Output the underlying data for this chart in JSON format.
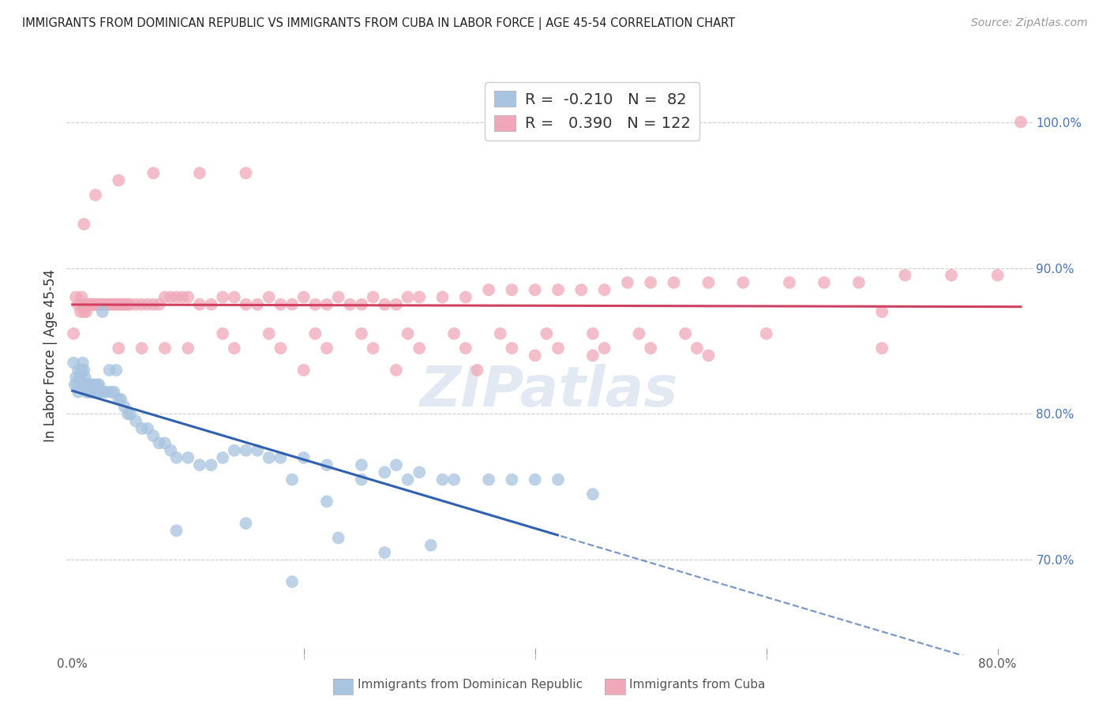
{
  "title": "IMMIGRANTS FROM DOMINICAN REPUBLIC VS IMMIGRANTS FROM CUBA IN LABOR FORCE | AGE 45-54 CORRELATION CHART",
  "source": "Source: ZipAtlas.com",
  "ylabel": "In Labor Force | Age 45-54",
  "legend_labels": [
    "Immigrants from Dominican Republic",
    "Immigrants from Cuba"
  ],
  "legend_r": [
    -0.21,
    0.39
  ],
  "legend_n": [
    82,
    122
  ],
  "blue_color": "#a8c4e0",
  "pink_color": "#f0a8b8",
  "blue_line_color": "#3060b0",
  "pink_line_color": "#d04060",
  "watermark": "ZIPatlas",
  "x_tick_labels": [
    "0.0%",
    "",
    "",
    "",
    "",
    "80.0%"
  ],
  "x_tick_values": [
    0.0,
    0.16,
    0.32,
    0.48,
    0.64,
    0.8
  ],
  "right_y_ticks": [
    0.7,
    0.8,
    0.9,
    1.0
  ],
  "right_y_tick_labels": [
    "70.0%",
    "80.0%",
    "90.0%",
    "100.0%"
  ],
  "xlim": [
    -0.005,
    0.83
  ],
  "ylim": [
    0.635,
    1.045
  ],
  "blue_x": [
    0.001,
    0.002,
    0.003,
    0.004,
    0.005,
    0.005,
    0.006,
    0.007,
    0.007,
    0.008,
    0.009,
    0.01,
    0.01,
    0.011,
    0.012,
    0.012,
    0.013,
    0.014,
    0.015,
    0.015,
    0.016,
    0.017,
    0.018,
    0.019,
    0.02,
    0.021,
    0.022,
    0.023,
    0.024,
    0.025,
    0.026,
    0.028,
    0.03,
    0.032,
    0.034,
    0.036,
    0.038,
    0.04,
    0.042,
    0.045,
    0.048,
    0.05,
    0.055,
    0.06,
    0.065,
    0.07,
    0.075,
    0.08,
    0.085,
    0.09,
    0.1,
    0.11,
    0.12,
    0.13,
    0.14,
    0.15,
    0.16,
    0.17,
    0.18,
    0.2,
    0.22,
    0.25,
    0.28,
    0.3,
    0.33,
    0.36,
    0.4,
    0.45,
    0.32,
    0.27,
    0.38,
    0.42,
    0.22,
    0.19,
    0.25,
    0.29,
    0.09,
    0.15,
    0.19,
    0.23,
    0.27,
    0.31
  ],
  "blue_y": [
    0.835,
    0.82,
    0.825,
    0.82,
    0.815,
    0.83,
    0.825,
    0.82,
    0.825,
    0.83,
    0.835,
    0.83,
    0.82,
    0.825,
    0.82,
    0.815,
    0.82,
    0.815,
    0.82,
    0.815,
    0.815,
    0.82,
    0.815,
    0.82,
    0.815,
    0.815,
    0.82,
    0.82,
    0.815,
    0.815,
    0.87,
    0.815,
    0.815,
    0.83,
    0.815,
    0.815,
    0.83,
    0.81,
    0.81,
    0.805,
    0.8,
    0.8,
    0.795,
    0.79,
    0.79,
    0.785,
    0.78,
    0.78,
    0.775,
    0.77,
    0.77,
    0.765,
    0.765,
    0.77,
    0.775,
    0.775,
    0.775,
    0.77,
    0.77,
    0.77,
    0.765,
    0.765,
    0.765,
    0.76,
    0.755,
    0.755,
    0.755,
    0.745,
    0.755,
    0.76,
    0.755,
    0.755,
    0.74,
    0.755,
    0.755,
    0.755,
    0.72,
    0.725,
    0.685,
    0.715,
    0.705,
    0.71
  ],
  "pink_x": [
    0.001,
    0.003,
    0.005,
    0.007,
    0.008,
    0.009,
    0.01,
    0.011,
    0.012,
    0.013,
    0.015,
    0.016,
    0.017,
    0.018,
    0.019,
    0.02,
    0.022,
    0.024,
    0.026,
    0.028,
    0.03,
    0.032,
    0.034,
    0.036,
    0.038,
    0.04,
    0.042,
    0.044,
    0.046,
    0.048,
    0.05,
    0.055,
    0.06,
    0.065,
    0.07,
    0.075,
    0.08,
    0.085,
    0.09,
    0.095,
    0.1,
    0.11,
    0.12,
    0.13,
    0.14,
    0.15,
    0.16,
    0.17,
    0.18,
    0.19,
    0.2,
    0.21,
    0.22,
    0.23,
    0.24,
    0.25,
    0.26,
    0.27,
    0.28,
    0.29,
    0.3,
    0.32,
    0.34,
    0.36,
    0.38,
    0.4,
    0.42,
    0.44,
    0.46,
    0.48,
    0.5,
    0.52,
    0.55,
    0.58,
    0.62,
    0.65,
    0.68,
    0.72,
    0.76,
    0.8,
    0.13,
    0.17,
    0.21,
    0.25,
    0.29,
    0.33,
    0.37,
    0.41,
    0.45,
    0.49,
    0.53,
    0.04,
    0.06,
    0.08,
    0.1,
    0.14,
    0.18,
    0.22,
    0.26,
    0.3,
    0.34,
    0.38,
    0.42,
    0.46,
    0.5,
    0.54,
    0.2,
    0.28,
    0.35,
    0.4,
    0.45,
    0.55,
    0.6,
    0.7,
    0.01,
    0.02,
    0.04,
    0.07,
    0.11,
    0.15,
    0.7,
    0.82
  ],
  "pink_y": [
    0.855,
    0.88,
    0.875,
    0.87,
    0.88,
    0.875,
    0.87,
    0.875,
    0.87,
    0.875,
    0.875,
    0.875,
    0.875,
    0.875,
    0.875,
    0.875,
    0.875,
    0.875,
    0.875,
    0.875,
    0.875,
    0.875,
    0.875,
    0.875,
    0.875,
    0.875,
    0.875,
    0.875,
    0.875,
    0.875,
    0.875,
    0.875,
    0.875,
    0.875,
    0.875,
    0.875,
    0.88,
    0.88,
    0.88,
    0.88,
    0.88,
    0.875,
    0.875,
    0.88,
    0.88,
    0.875,
    0.875,
    0.88,
    0.875,
    0.875,
    0.88,
    0.875,
    0.875,
    0.88,
    0.875,
    0.875,
    0.88,
    0.875,
    0.875,
    0.88,
    0.88,
    0.88,
    0.88,
    0.885,
    0.885,
    0.885,
    0.885,
    0.885,
    0.885,
    0.89,
    0.89,
    0.89,
    0.89,
    0.89,
    0.89,
    0.89,
    0.89,
    0.895,
    0.895,
    0.895,
    0.855,
    0.855,
    0.855,
    0.855,
    0.855,
    0.855,
    0.855,
    0.855,
    0.855,
    0.855,
    0.855,
    0.845,
    0.845,
    0.845,
    0.845,
    0.845,
    0.845,
    0.845,
    0.845,
    0.845,
    0.845,
    0.845,
    0.845,
    0.845,
    0.845,
    0.845,
    0.83,
    0.83,
    0.83,
    0.84,
    0.84,
    0.84,
    0.855,
    0.845,
    0.93,
    0.95,
    0.96,
    0.965,
    0.965,
    0.965,
    0.87,
    1.0
  ]
}
